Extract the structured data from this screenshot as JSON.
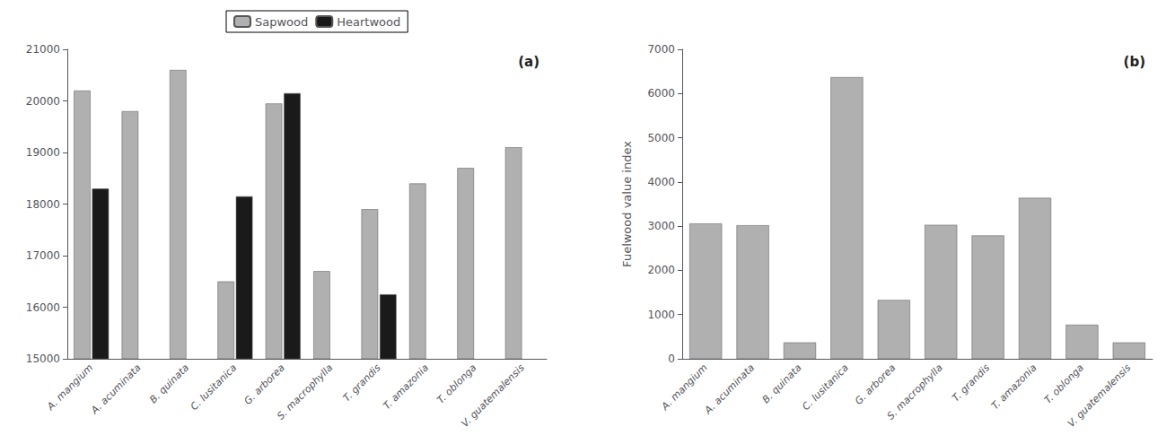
{
  "chart_data": [
    {
      "type": "bar",
      "categories": [
        "A. mangium",
        "A. acuminata",
        "B. quinata",
        "C. lusitanica",
        "G. arborea",
        "S. macrophylla",
        "T. grandis",
        "T. amazonia",
        "T. oblonga",
        "V. guatemalensis"
      ],
      "series": [
        {
          "name": "Sapwood",
          "color": "#b0b0b0",
          "values": [
            20200,
            19800,
            20600,
            16500,
            19950,
            16700,
            17900,
            18400,
            18700,
            19100
          ]
        },
        {
          "name": "Heartwood",
          "color": "#1a1a1a",
          "values": [
            18300,
            null,
            null,
            18150,
            20150,
            null,
            16250,
            null,
            null,
            null
          ]
        }
      ],
      "ylim": [
        15000,
        21000
      ],
      "yticks": [
        15000,
        16000,
        17000,
        18000,
        19000,
        20000,
        21000
      ],
      "grid": false,
      "legend": "top",
      "annotation": "(a)"
    },
    {
      "type": "bar",
      "categories": [
        "A. mangium",
        "A. acuminata",
        "B. quinata",
        "C. lusitanica",
        "G. arborea",
        "S. macrophylla",
        "T. grandis",
        "T. amazonia",
        "T. oblonga",
        "V. guatemalensis"
      ],
      "values": [
        3060,
        3020,
        370,
        6370,
        1330,
        3030,
        2790,
        3640,
        770,
        370
      ],
      "color": "#b0b0b0",
      "ylabel": "Fuelwood value index",
      "ylim": [
        0,
        7000
      ],
      "yticks": [
        0,
        1000,
        2000,
        3000,
        4000,
        5000,
        6000,
        7000
      ],
      "grid": false,
      "annotation": "(b)"
    }
  ]
}
